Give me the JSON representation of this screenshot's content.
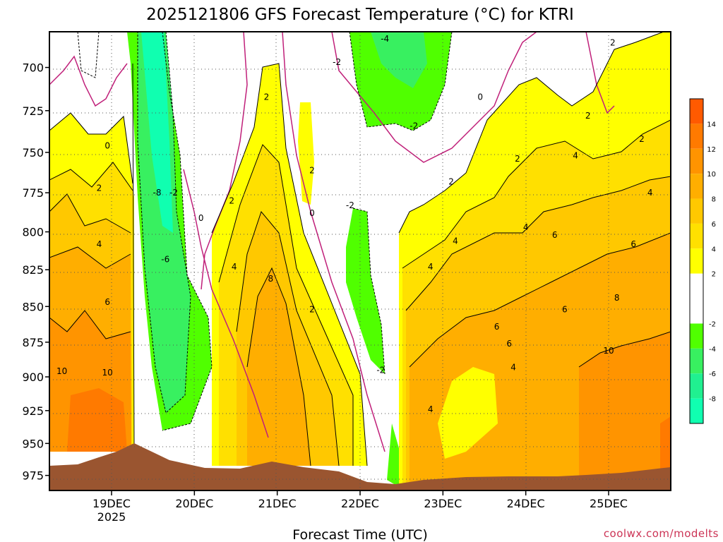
{
  "chart_data": {
    "type": "heatmap",
    "title": "2025121806 GFS Forecast Temperature (°C) for KTRI",
    "xlabel": "Forecast Time (UTC)",
    "ylabel": "",
    "credit": "coolwx.com/modelts",
    "x_ticks": [
      "19DEC",
      "20DEC",
      "21DEC",
      "22DEC",
      "23DEC",
      "24DEC",
      "25DEC"
    ],
    "x_tick_year": "2025",
    "x_range_days": [
      18.25,
      25.75
    ],
    "y_ticks": [
      700,
      725,
      750,
      775,
      800,
      825,
      850,
      875,
      900,
      925,
      950,
      975
    ],
    "y_range_hpa": [
      680,
      987
    ],
    "colorbar": {
      "ticks": [
        "14",
        "12",
        "10",
        "8",
        "6",
        "4",
        "2",
        "-2",
        "-4",
        "-6",
        "-8"
      ],
      "bands": [
        {
          "from": 14,
          "to": 16,
          "color": "#ff5a00"
        },
        {
          "from": 12,
          "to": 14,
          "color": "#ff7a00"
        },
        {
          "from": 10,
          "to": 12,
          "color": "#ff9400"
        },
        {
          "from": 8,
          "to": 10,
          "color": "#ffae00"
        },
        {
          "from": 6,
          "to": 8,
          "color": "#ffc800"
        },
        {
          "from": 4,
          "to": 6,
          "color": "#ffe000"
        },
        {
          "from": 2,
          "to": 4,
          "color": "#ffff00"
        },
        {
          "from": -2,
          "to": 2,
          "color": "#ffffff"
        },
        {
          "from": -4,
          "to": -2,
          "color": "#50ff00"
        },
        {
          "from": -6,
          "to": -4,
          "color": "#38f060"
        },
        {
          "from": -8,
          "to": -6,
          "color": "#20f090"
        },
        {
          "from": -10,
          "to": -8,
          "color": "#10ffb0"
        }
      ]
    },
    "contour_labels": [
      {
        "text": "2",
        "day": 18.85,
        "p": 772
      },
      {
        "text": "0",
        "day": 18.95,
        "p": 746
      },
      {
        "text": "4",
        "day": 18.85,
        "p": 808
      },
      {
        "text": "6",
        "day": 18.95,
        "p": 847
      },
      {
        "text": "10",
        "day": 18.4,
        "p": 896
      },
      {
        "text": "10",
        "day": 18.95,
        "p": 897
      },
      {
        "text": "-8",
        "day": 19.55,
        "p": 775
      },
      {
        "text": "-2",
        "day": 19.75,
        "p": 775
      },
      {
        "text": "-6",
        "day": 19.65,
        "p": 818
      },
      {
        "text": "0",
        "day": 20.08,
        "p": 791
      },
      {
        "text": "2",
        "day": 20.45,
        "p": 780
      },
      {
        "text": "4",
        "day": 20.48,
        "p": 823
      },
      {
        "text": "8",
        "day": 20.92,
        "p": 831
      },
      {
        "text": "2",
        "day": 20.87,
        "p": 717
      },
      {
        "text": "2",
        "day": 21.42,
        "p": 761
      },
      {
        "text": "0",
        "day": 21.42,
        "p": 788
      },
      {
        "text": "2",
        "day": 21.42,
        "p": 852
      },
      {
        "text": "-2",
        "day": 21.72,
        "p": 697
      },
      {
        "text": "-4",
        "day": 22.3,
        "p": 684
      },
      {
        "text": "-2",
        "day": 21.88,
        "p": 783
      },
      {
        "text": "-2",
        "day": 22.65,
        "p": 734
      },
      {
        "text": "-2",
        "day": 22.25,
        "p": 895
      },
      {
        "text": "0",
        "day": 23.45,
        "p": 717
      },
      {
        "text": "2",
        "day": 23.1,
        "p": 768
      },
      {
        "text": "4",
        "day": 23.15,
        "p": 806
      },
      {
        "text": "4",
        "day": 22.85,
        "p": 823
      },
      {
        "text": "4",
        "day": 22.85,
        "p": 924
      },
      {
        "text": "6",
        "day": 23.65,
        "p": 864
      },
      {
        "text": "6",
        "day": 23.8,
        "p": 876
      },
      {
        "text": "4",
        "day": 23.85,
        "p": 893
      },
      {
        "text": "2",
        "day": 23.9,
        "p": 754
      },
      {
        "text": "4",
        "day": 24.0,
        "p": 797
      },
      {
        "text": "6",
        "day": 24.35,
        "p": 802
      },
      {
        "text": "4",
        "day": 24.6,
        "p": 752
      },
      {
        "text": "2",
        "day": 24.75,
        "p": 728
      },
      {
        "text": "6",
        "day": 24.47,
        "p": 852
      },
      {
        "text": "8",
        "day": 25.1,
        "p": 844
      },
      {
        "text": "10",
        "day": 25.0,
        "p": 881
      },
      {
        "text": "2",
        "day": 25.05,
        "p": 686
      },
      {
        "text": "2",
        "day": 25.4,
        "p": 742
      },
      {
        "text": "4",
        "day": 25.5,
        "p": 775
      },
      {
        "text": "6",
        "day": 25.3,
        "p": 808
      }
    ]
  }
}
